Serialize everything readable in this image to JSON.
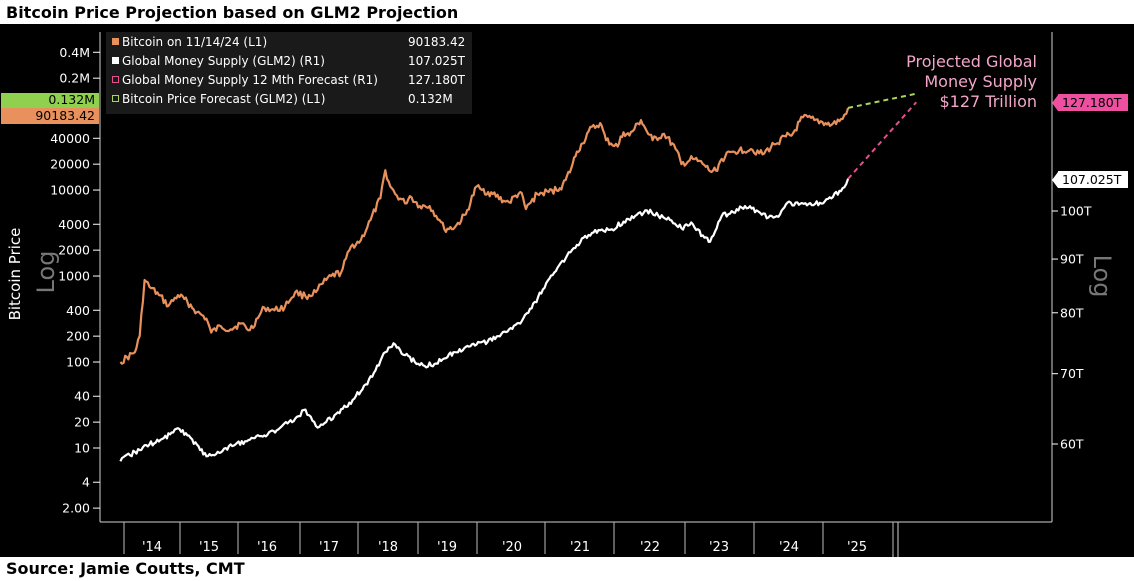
{
  "title": "Bitcoin Price Projection based on GLM2 Projection",
  "source": "Source: Jamie Coutts, CMT",
  "colors": {
    "background": "#000000",
    "bitcoin": "#e8915c",
    "glm2": "#ffffff",
    "glm2_forecast": "#e0528a",
    "btc_forecast": "#a8d65a",
    "label_btc_forecast_bg": "#8fd14f",
    "label_btc_bg": "#e8915c",
    "label_glm2_forecast_bg": "#ef4fa0",
    "label_glm2_bg": "#ffffff",
    "annotation": "#f4a6c8"
  },
  "chart_data": {
    "type": "line",
    "title": "Bitcoin Price Projection based on GLM2 Projection",
    "left_axis": {
      "label": "Bitcoin Price",
      "scale": "log",
      "scale_watermark": "Log",
      "ticks": [
        {
          "value": 2,
          "label": "2.00"
        },
        {
          "value": 4,
          "label": "4"
        },
        {
          "value": 10,
          "label": "10"
        },
        {
          "value": 20,
          "label": "20"
        },
        {
          "value": 40,
          "label": "40"
        },
        {
          "value": 100,
          "label": "100"
        },
        {
          "value": 200,
          "label": "200"
        },
        {
          "value": 400,
          "label": "400"
        },
        {
          "value": 1000,
          "label": "1000"
        },
        {
          "value": 2000,
          "label": "2000"
        },
        {
          "value": 4000,
          "label": "4000"
        },
        {
          "value": 10000,
          "label": "10000"
        },
        {
          "value": 20000,
          "label": "20000"
        },
        {
          "value": 40000,
          "label": "40000"
        },
        {
          "value": 200000,
          "label": "0.2M"
        },
        {
          "value": 400000,
          "label": "0.4M"
        }
      ],
      "range": [
        1,
        900000
      ]
    },
    "right_axis": {
      "scale": "log",
      "scale_watermark": "Log",
      "ticks": [
        {
          "value": 60,
          "label": "60T"
        },
        {
          "value": 70,
          "label": "70T"
        },
        {
          "value": 80,
          "label": "80T"
        },
        {
          "value": 90,
          "label": "90T"
        },
        {
          "value": 100,
          "label": "100T"
        }
      ]
    },
    "x_axis": {
      "ticks": [
        "'14",
        "'15",
        "'16",
        "'17",
        "'18",
        "'19",
        "'20",
        "'21",
        "'22",
        "'23",
        "'24",
        "'25"
      ]
    },
    "legend": {
      "placement": "top-left",
      "entries": [
        {
          "marker": "filled",
          "color": "#e8915c",
          "label": "Bitcoin on 11/14/24 (L1)",
          "value": "90183.42"
        },
        {
          "marker": "filled",
          "color": "#ffffff",
          "label": "Global Money Supply (GLM2) (R1)",
          "value": "107.025T"
        },
        {
          "marker": "hollow",
          "color": "#e0528a",
          "label": "Global Money Supply 12 Mth Forecast (R1)",
          "value": "127.180T"
        },
        {
          "marker": "hollow",
          "color": "#a8d65a",
          "label": "Bitcoin Price Forecast (GLM2) (L1)",
          "value": "0.132M"
        }
      ]
    },
    "value_labels": {
      "btc_forecast": "0.132M",
      "btc_last": "90183.42",
      "glm2_forecast": "127.180T",
      "glm2_last": "107.025T"
    },
    "annotation": [
      "Projected Global",
      "Money Supply",
      "$127 Trillion"
    ],
    "series": [
      {
        "name": "Bitcoin on 11/14/24 (L1)",
        "axis": "left",
        "points": [
          [
            "2013-06",
            100
          ],
          [
            "2013-09",
            130
          ],
          [
            "2013-10",
            200
          ],
          [
            "2013-11",
            900
          ],
          [
            "2013-12",
            750
          ],
          [
            "2014-02",
            600
          ],
          [
            "2014-04",
            450
          ],
          [
            "2014-06",
            600
          ],
          [
            "2014-08",
            500
          ],
          [
            "2014-10",
            380
          ],
          [
            "2014-12",
            320
          ],
          [
            "2015-01",
            220
          ],
          [
            "2015-03",
            260
          ],
          [
            "2015-05",
            240
          ],
          [
            "2015-07",
            280
          ],
          [
            "2015-09",
            235
          ],
          [
            "2015-11",
            350
          ],
          [
            "2015-12",
            430
          ],
          [
            "2016-02",
            400
          ],
          [
            "2016-04",
            440
          ],
          [
            "2016-06",
            650
          ],
          [
            "2016-08",
            580
          ],
          [
            "2016-10",
            650
          ],
          [
            "2016-12",
            900
          ],
          [
            "2017-01",
            1000
          ],
          [
            "2017-03",
            1100
          ],
          [
            "2017-05",
            2200
          ],
          [
            "2017-07",
            2600
          ],
          [
            "2017-09",
            4500
          ],
          [
            "2017-11",
            8000
          ],
          [
            "2017-12",
            17000
          ],
          [
            "2018-01",
            11000
          ],
          [
            "2018-02",
            9000
          ],
          [
            "2018-04",
            7000
          ],
          [
            "2018-05",
            8500
          ],
          [
            "2018-07",
            6500
          ],
          [
            "2018-09",
            6500
          ],
          [
            "2018-11",
            4500
          ],
          [
            "2018-12",
            3500
          ],
          [
            "2019-02",
            3700
          ],
          [
            "2019-04",
            5200
          ],
          [
            "2019-06",
            11000
          ],
          [
            "2019-07",
            10000
          ],
          [
            "2019-09",
            9000
          ],
          [
            "2019-11",
            7500
          ],
          [
            "2019-12",
            7200
          ],
          [
            "2020-02",
            9500
          ],
          [
            "2020-03",
            6000
          ],
          [
            "2020-05",
            9000
          ],
          [
            "2020-07",
            9500
          ],
          [
            "2020-09",
            10500
          ],
          [
            "2020-10",
            13000
          ],
          [
            "2020-11",
            18000
          ],
          [
            "2020-12",
            28000
          ],
          [
            "2021-01",
            35000
          ],
          [
            "2021-02",
            48000
          ],
          [
            "2021-04",
            60000
          ],
          [
            "2021-05",
            38000
          ],
          [
            "2021-07",
            32000
          ],
          [
            "2021-08",
            47000
          ],
          [
            "2021-09",
            43000
          ],
          [
            "2021-11",
            65000
          ],
          [
            "2021-12",
            48000
          ],
          [
            "2022-01",
            38000
          ],
          [
            "2022-03",
            45000
          ],
          [
            "2022-05",
            30000
          ],
          [
            "2022-06",
            20000
          ],
          [
            "2022-08",
            23000
          ],
          [
            "2022-10",
            19500
          ],
          [
            "2022-11",
            16500
          ],
          [
            "2022-12",
            16800
          ],
          [
            "2023-01",
            23000
          ],
          [
            "2023-03",
            28000
          ],
          [
            "2023-04",
            29000
          ],
          [
            "2023-06",
            30000
          ],
          [
            "2023-08",
            26000
          ],
          [
            "2023-10",
            34000
          ],
          [
            "2023-12",
            42000
          ],
          [
            "2024-01",
            43000
          ],
          [
            "2024-03",
            70000
          ],
          [
            "2024-05",
            65000
          ],
          [
            "2024-07",
            60000
          ],
          [
            "2024-08",
            57000
          ],
          [
            "2024-10",
            67000
          ],
          [
            "2024-11-14",
            90183.42
          ]
        ]
      },
      {
        "name": "Global Money Supply (GLM2) (R1)",
        "axis": "left",
        "points": [
          [
            "2013-06",
            7
          ],
          [
            "2013-09",
            9
          ],
          [
            "2013-12",
            11
          ],
          [
            "2014-03",
            13
          ],
          [
            "2014-06",
            17
          ],
          [
            "2014-08",
            14
          ],
          [
            "2014-10",
            11
          ],
          [
            "2014-12",
            8
          ],
          [
            "2015-02",
            8.5
          ],
          [
            "2015-04",
            10
          ],
          [
            "2015-06",
            11
          ],
          [
            "2015-08",
            12
          ],
          [
            "2015-10",
            13
          ],
          [
            "2015-12",
            14
          ],
          [
            "2016-03",
            17
          ],
          [
            "2016-06",
            22
          ],
          [
            "2016-08",
            28
          ],
          [
            "2016-10",
            18
          ],
          [
            "2016-12",
            20
          ],
          [
            "2017-02",
            25
          ],
          [
            "2017-04",
            30
          ],
          [
            "2017-06",
            40
          ],
          [
            "2017-08",
            55
          ],
          [
            "2017-10",
            80
          ],
          [
            "2017-12",
            130
          ],
          [
            "2018-02",
            160
          ],
          [
            "2018-04",
            120
          ],
          [
            "2018-06",
            100
          ],
          [
            "2018-08",
            90
          ],
          [
            "2018-10",
            95
          ],
          [
            "2018-12",
            110
          ],
          [
            "2019-02",
            130
          ],
          [
            "2019-04",
            150
          ],
          [
            "2019-06",
            160
          ],
          [
            "2019-08",
            170
          ],
          [
            "2019-10",
            200
          ],
          [
            "2019-12",
            240
          ],
          [
            "2020-02",
            280
          ],
          [
            "2020-04",
            420
          ],
          [
            "2020-06",
            700
          ],
          [
            "2020-08",
            1100
          ],
          [
            "2020-10",
            1600
          ],
          [
            "2020-12",
            2300
          ],
          [
            "2021-02",
            3000
          ],
          [
            "2021-04",
            3400
          ],
          [
            "2021-06",
            3500
          ],
          [
            "2021-08",
            4300
          ],
          [
            "2021-10",
            5000
          ],
          [
            "2021-12",
            5800
          ],
          [
            "2022-02",
            5000
          ],
          [
            "2022-04",
            4500
          ],
          [
            "2022-06",
            3600
          ],
          [
            "2022-08",
            4000
          ],
          [
            "2022-10",
            2800
          ],
          [
            "2022-11",
            2500
          ],
          [
            "2023-01",
            5000
          ],
          [
            "2023-03",
            5500
          ],
          [
            "2023-05",
            6500
          ],
          [
            "2023-07",
            5800
          ],
          [
            "2023-09",
            4800
          ],
          [
            "2023-11",
            5200
          ],
          [
            "2023-12",
            6800
          ],
          [
            "2024-02",
            7200
          ],
          [
            "2024-04",
            6900
          ],
          [
            "2024-06",
            7100
          ],
          [
            "2024-08",
            8000
          ],
          [
            "2024-10",
            10500
          ],
          [
            "2024-11-14",
            13500
          ]
        ]
      },
      {
        "name": "Global Money Supply 12 Mth Forecast (R1)",
        "axis": "left",
        "style": "dashed",
        "points": [
          [
            "2024-11-14",
            13500
          ],
          [
            "2025-11",
            105000
          ]
        ]
      },
      {
        "name": "Bitcoin Price Forecast (GLM2) (L1)",
        "axis": "left",
        "style": "dashed",
        "points": [
          [
            "2024-11-14",
            90183.42
          ],
          [
            "2025-11",
            132000
          ]
        ]
      }
    ]
  }
}
